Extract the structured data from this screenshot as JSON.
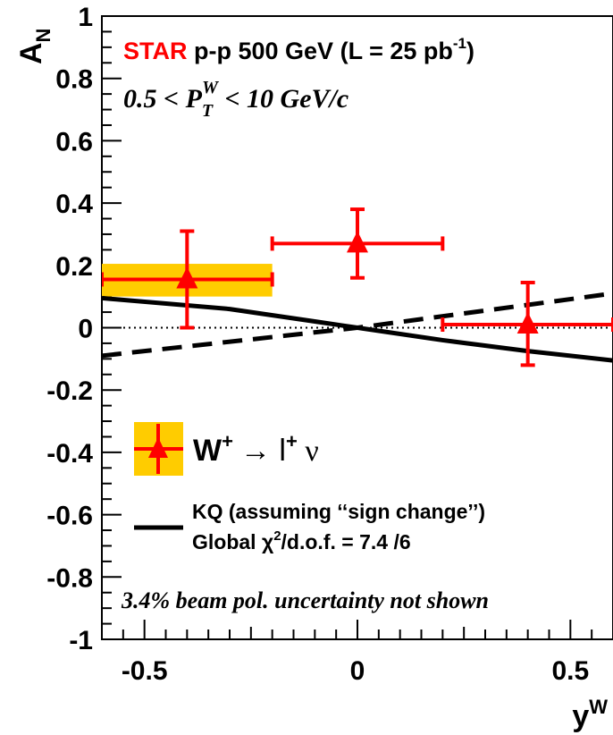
{
  "chart_data": {
    "type": "scatter",
    "xlabel": "y",
    "xlabel_superscript": "W",
    "ylabel": "A",
    "ylabel_subscript": "N",
    "xlim": [
      -0.6,
      0.6
    ],
    "ylim": [
      -1,
      1
    ],
    "x_ticks": [
      {
        "value": -0.5,
        "label": "-0.5"
      },
      {
        "value": 0,
        "label": "0"
      },
      {
        "value": 0.5,
        "label": "0.5"
      }
    ],
    "y_ticks": [
      {
        "value": 1,
        "label": "1"
      },
      {
        "value": 0.8,
        "label": "0.8"
      },
      {
        "value": 0.6,
        "label": "0.6"
      },
      {
        "value": 0.4,
        "label": "0.4"
      },
      {
        "value": 0.2,
        "label": "0.2"
      },
      {
        "value": 0,
        "label": "0"
      },
      {
        "value": -0.2,
        "label": "-0.2"
      },
      {
        "value": -0.4,
        "label": "-0.4"
      },
      {
        "value": -0.6,
        "label": "-0.6"
      },
      {
        "value": -0.8,
        "label": "-0.8"
      },
      {
        "value": -1,
        "label": "-1"
      }
    ],
    "grid": false,
    "zero_line": "dotted",
    "data_points": [
      {
        "x": -0.4,
        "y": 0.155,
        "x_low": -0.6,
        "x_high": -0.2,
        "y_err_up": 0.155,
        "y_err_down": 0.155,
        "sys_low": 0.1,
        "sys_high": 0.205
      },
      {
        "x": 0.0,
        "y": 0.27,
        "x_low": -0.2,
        "x_high": 0.2,
        "y_err_up": 0.11,
        "y_err_down": 0.11
      },
      {
        "x": 0.4,
        "y": 0.01,
        "x_low": 0.2,
        "x_high": 0.6,
        "y_err_up": 0.135,
        "y_err_down": 0.13
      }
    ],
    "series": [
      {
        "line_style": "solid",
        "color": "#000000",
        "points": [
          [
            -0.6,
            0.095
          ],
          [
            -0.3,
            0.06
          ],
          [
            -0.1,
            0.02
          ],
          [
            0.0,
            0.0
          ],
          [
            0.2,
            -0.04
          ],
          [
            0.4,
            -0.075
          ],
          [
            0.6,
            -0.105
          ]
        ]
      },
      {
        "line_style": "dashed",
        "color": "#000000",
        "points": [
          [
            -0.6,
            -0.09
          ],
          [
            0.0,
            0.0
          ],
          [
            0.6,
            0.11
          ]
        ]
      }
    ],
    "colors": {
      "data": "#ff0000",
      "systematic": "#ffcc00",
      "theory": "#000000"
    },
    "annotations": {
      "star": "STAR",
      "experiment": "p-p 500 GeV (L = 25 pb",
      "experiment_sup": "-1",
      "experiment_end": ")",
      "kin_pre": "0.5 < P",
      "kin_sub": "T",
      "kin_sup": "W",
      "kin_post": " < 10 GeV/c",
      "beam_pol": "3.4% beam pol. uncertainty not shown"
    },
    "legend": {
      "placement": "bottom-left",
      "data_label_W": "W",
      "data_label_sup1": "+",
      "data_label_arrow": "→ l",
      "data_label_sup2": "+",
      "data_label_nu": " ν",
      "theory_label": "KQ (assuming ‘‘sign change’’)",
      "chi2_pre": "Global χ",
      "chi2_sup": "2",
      "chi2_post": "/d.o.f. = 7.4  /6"
    }
  }
}
